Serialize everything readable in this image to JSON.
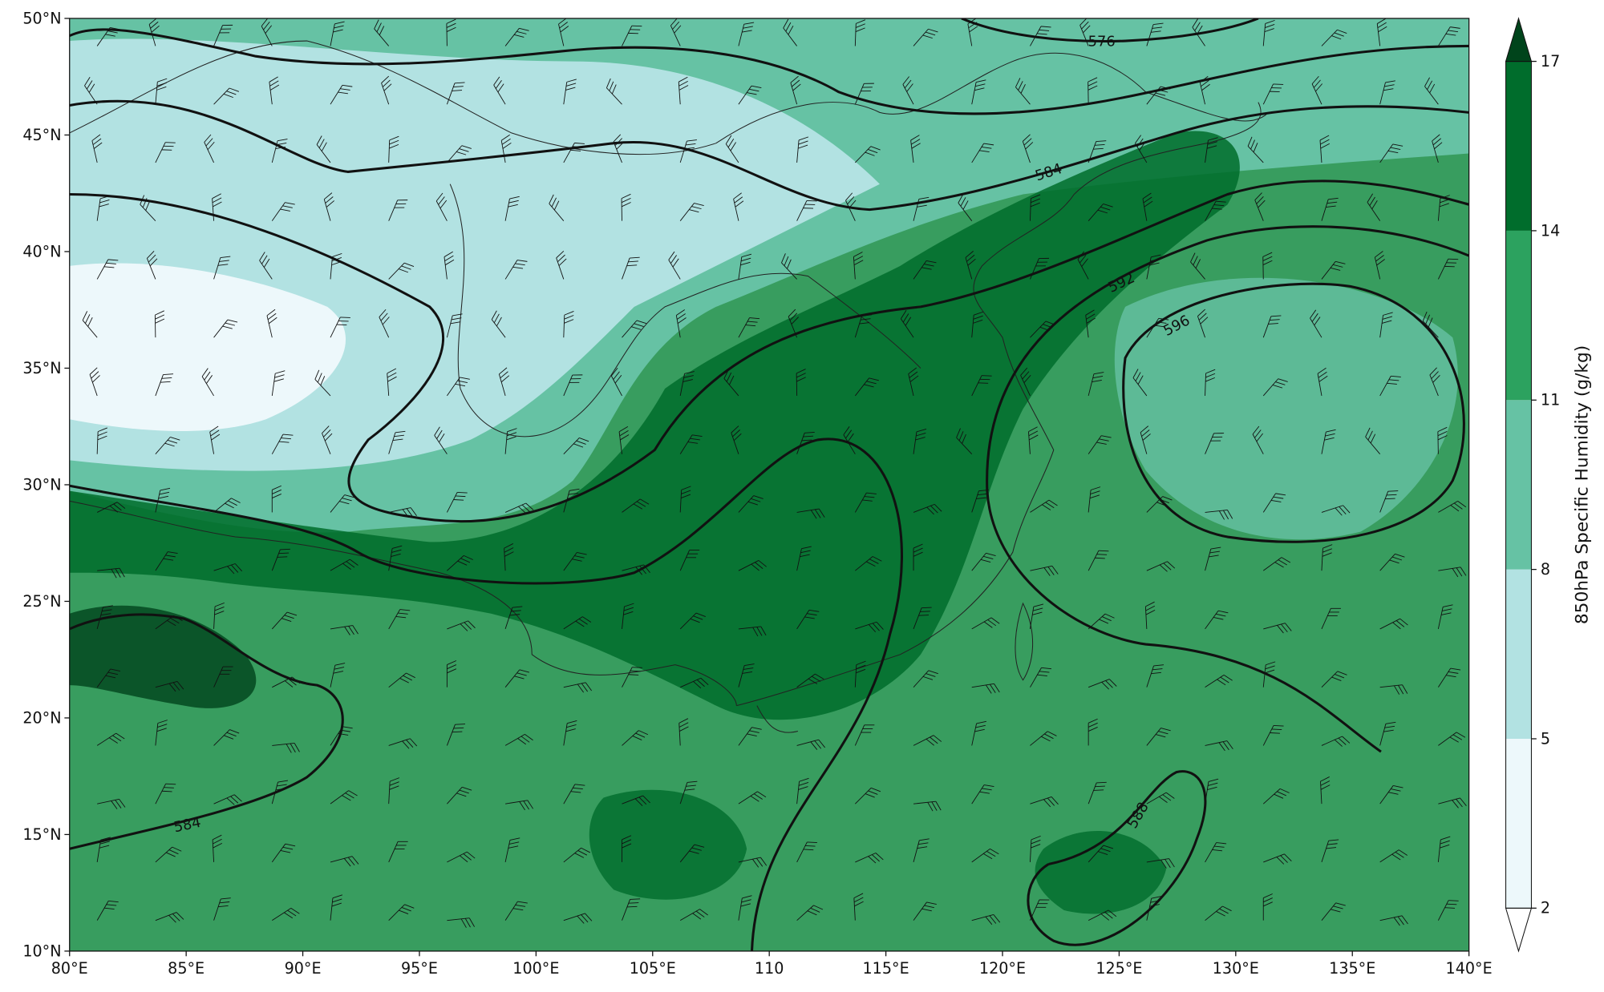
{
  "map": {
    "xlim": [
      80,
      140
    ],
    "ylim": [
      10,
      50
    ],
    "xticks": [
      {
        "value": 80,
        "label": "80°E"
      },
      {
        "value": 85,
        "label": "85°E"
      },
      {
        "value": 90,
        "label": "90°E"
      },
      {
        "value": 95,
        "label": "95°E"
      },
      {
        "value": 100,
        "label": "100°E"
      },
      {
        "value": 105,
        "label": "105°E"
      },
      {
        "value": 110,
        "label": "110"
      },
      {
        "value": 115,
        "label": "115°E"
      },
      {
        "value": 120,
        "label": "120°E"
      },
      {
        "value": 125,
        "label": "125°E"
      },
      {
        "value": 130,
        "label": "130°E"
      },
      {
        "value": 135,
        "label": "135°E"
      },
      {
        "value": 140,
        "label": "140°E"
      }
    ],
    "yticks": [
      {
        "value": 10,
        "label": "10°N"
      },
      {
        "value": 15,
        "label": "15°N"
      },
      {
        "value": 20,
        "label": "20°N"
      },
      {
        "value": 25,
        "label": "25°N"
      },
      {
        "value": 30,
        "label": "30°N"
      },
      {
        "value": 35,
        "label": "35°N"
      },
      {
        "value": 40,
        "label": "40°N"
      },
      {
        "value": 45,
        "label": "45°N"
      },
      {
        "value": 50,
        "label": "50°N"
      }
    ],
    "contour_labels": [
      576,
      584,
      592,
      596,
      588,
      584
    ],
    "colorbar": {
      "label": "850hPa Specific Humidity (g/kg)",
      "ticks": [
        2,
        5,
        8,
        11,
        14,
        17
      ],
      "colors": [
        "#edf8fb",
        "#b2e2e2",
        "#66c2a4",
        "#2ca25f",
        "#006d2c"
      ],
      "over_color": "#00441b",
      "under_color": "#ffffff"
    }
  }
}
